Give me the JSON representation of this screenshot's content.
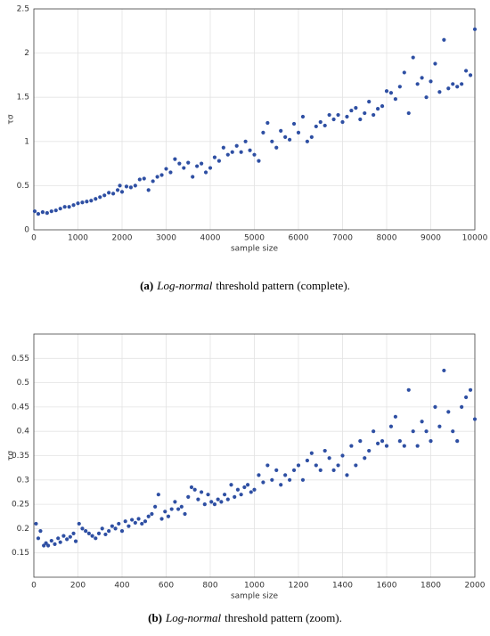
{
  "chart_data": [
    {
      "type": "scatter",
      "xlabel": "sample size",
      "ylabel": "τσ",
      "caption_label": "(a)",
      "caption_emphasis": "Log-normal",
      "caption_text": "threshold pattern (complete).",
      "color": "#2e4fa3",
      "grid": true,
      "xlim": [
        0,
        10000
      ],
      "xticks": [
        0,
        1000,
        2000,
        3000,
        4000,
        5000,
        6000,
        7000,
        8000,
        9000,
        10000
      ],
      "ylim": [
        0,
        2.5
      ],
      "yticks": [
        0,
        0.5,
        1,
        1.5,
        2,
        2.5
      ],
      "x": [
        20,
        100,
        200,
        300,
        400,
        500,
        600,
        700,
        800,
        900,
        1000,
        1100,
        1200,
        1300,
        1400,
        1500,
        1600,
        1700,
        1800,
        1900,
        1950,
        2000,
        2100,
        2200,
        2300,
        2400,
        2500,
        2600,
        2700,
        2800,
        2900,
        3000,
        3100,
        3200,
        3300,
        3400,
        3500,
        3600,
        3700,
        3800,
        3900,
        4000,
        4100,
        4200,
        4300,
        4400,
        4500,
        4600,
        4700,
        4800,
        4900,
        5000,
        5100,
        5200,
        5300,
        5400,
        5500,
        5600,
        5700,
        5800,
        5900,
        6000,
        6100,
        6200,
        6300,
        6400,
        6500,
        6600,
        6700,
        6800,
        6900,
        7000,
        7100,
        7200,
        7300,
        7400,
        7500,
        7600,
        7700,
        7800,
        7900,
        8000,
        8100,
        8200,
        8300,
        8400,
        8500,
        8600,
        8700,
        8800,
        8900,
        9000,
        9100,
        9200,
        9300,
        9400,
        9500,
        9600,
        9700,
        9800,
        9900,
        10000
      ],
      "values": [
        0.21,
        0.18,
        0.2,
        0.19,
        0.21,
        0.22,
        0.24,
        0.26,
        0.26,
        0.28,
        0.3,
        0.31,
        0.32,
        0.33,
        0.35,
        0.37,
        0.39,
        0.42,
        0.41,
        0.45,
        0.5,
        0.43,
        0.49,
        0.48,
        0.5,
        0.57,
        0.58,
        0.45,
        0.55,
        0.6,
        0.62,
        0.69,
        0.65,
        0.8,
        0.75,
        0.7,
        0.76,
        0.6,
        0.72,
        0.75,
        0.65,
        0.7,
        0.82,
        0.78,
        0.93,
        0.85,
        0.88,
        0.95,
        0.88,
        1.0,
        0.9,
        0.85,
        0.78,
        1.1,
        1.21,
        1.0,
        0.93,
        1.12,
        1.05,
        1.02,
        1.2,
        1.1,
        1.28,
        1.0,
        1.05,
        1.17,
        1.22,
        1.18,
        1.3,
        1.25,
        1.3,
        1.22,
        1.28,
        1.35,
        1.38,
        1.25,
        1.32,
        1.45,
        1.3,
        1.37,
        1.4,
        1.57,
        1.55,
        1.48,
        1.62,
        1.78,
        1.32,
        1.95,
        1.65,
        1.72,
        1.5,
        1.68,
        1.88,
        1.56,
        2.15,
        1.6,
        1.65,
        1.62,
        1.65,
        1.8,
        1.75,
        2.27
      ]
    },
    {
      "type": "scatter",
      "xlabel": "sample size",
      "ylabel": "τσ",
      "caption_label": "(b)",
      "caption_emphasis": "Log-normal",
      "caption_text": "threshold pattern (zoom).",
      "color": "#2e4fa3",
      "grid": true,
      "xlim": [
        0,
        2000
      ],
      "xticks": [
        0,
        200,
        400,
        600,
        800,
        1000,
        1200,
        1400,
        1600,
        1800,
        2000
      ],
      "ylim": [
        0.1,
        0.6
      ],
      "yticks": [
        0.15,
        0.2,
        0.25,
        0.3,
        0.35,
        0.4,
        0.45,
        0.5,
        0.55
      ],
      "x": [
        10,
        20,
        30,
        45,
        55,
        65,
        80,
        95,
        110,
        120,
        135,
        150,
        165,
        180,
        190,
        205,
        220,
        235,
        250,
        265,
        280,
        295,
        310,
        325,
        340,
        355,
        370,
        385,
        400,
        415,
        430,
        445,
        460,
        475,
        490,
        505,
        520,
        535,
        550,
        565,
        580,
        595,
        610,
        625,
        640,
        655,
        670,
        685,
        700,
        715,
        730,
        745,
        760,
        775,
        790,
        805,
        820,
        835,
        850,
        865,
        880,
        895,
        910,
        925,
        940,
        955,
        970,
        985,
        1000,
        1020,
        1040,
        1060,
        1080,
        1100,
        1120,
        1140,
        1160,
        1180,
        1200,
        1220,
        1240,
        1260,
        1280,
        1300,
        1320,
        1340,
        1360,
        1380,
        1400,
        1420,
        1440,
        1460,
        1480,
        1500,
        1520,
        1540,
        1560,
        1580,
        1600,
        1620,
        1640,
        1660,
        1680,
        1700,
        1720,
        1740,
        1760,
        1780,
        1800,
        1820,
        1840,
        1860,
        1880,
        1900,
        1920,
        1940,
        1960,
        1980,
        2000
      ],
      "values": [
        0.21,
        0.18,
        0.195,
        0.165,
        0.17,
        0.165,
        0.175,
        0.168,
        0.18,
        0.172,
        0.185,
        0.178,
        0.183,
        0.19,
        0.174,
        0.21,
        0.2,
        0.195,
        0.19,
        0.185,
        0.18,
        0.19,
        0.2,
        0.188,
        0.195,
        0.205,
        0.2,
        0.21,
        0.195,
        0.215,
        0.205,
        0.218,
        0.212,
        0.22,
        0.21,
        0.215,
        0.225,
        0.23,
        0.245,
        0.27,
        0.22,
        0.235,
        0.225,
        0.24,
        0.255,
        0.24,
        0.245,
        0.23,
        0.265,
        0.285,
        0.28,
        0.26,
        0.275,
        0.25,
        0.27,
        0.255,
        0.25,
        0.26,
        0.255,
        0.27,
        0.26,
        0.29,
        0.265,
        0.28,
        0.27,
        0.285,
        0.29,
        0.275,
        0.28,
        0.31,
        0.295,
        0.33,
        0.3,
        0.32,
        0.29,
        0.31,
        0.3,
        0.32,
        0.33,
        0.3,
        0.34,
        0.355,
        0.33,
        0.32,
        0.36,
        0.345,
        0.32,
        0.33,
        0.35,
        0.31,
        0.37,
        0.33,
        0.38,
        0.345,
        0.36,
        0.4,
        0.375,
        0.38,
        0.37,
        0.41,
        0.43,
        0.38,
        0.37,
        0.485,
        0.4,
        0.37,
        0.42,
        0.4,
        0.38,
        0.45,
        0.41,
        0.525,
        0.44,
        0.4,
        0.38,
        0.45,
        0.47,
        0.485,
        0.425
      ]
    }
  ]
}
